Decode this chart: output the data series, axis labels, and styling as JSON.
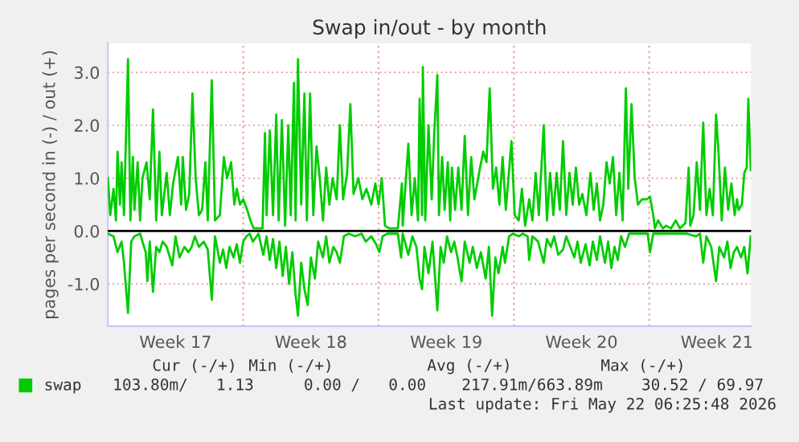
{
  "chart_data": {
    "type": "line",
    "title": "Swap in/out - by month",
    "ylabel": "pages per second in (-) / out (+)",
    "series": [
      {
        "name": "swap",
        "color": "#00cc00",
        "x": [
          "2026-04-19T00:00",
          "2026-04-19T03:00",
          "2026-04-19T07:00",
          "2026-04-19T10:00",
          "2026-04-19T12:00",
          "2026-04-19T15:00",
          "2026-04-19T17:00",
          "2026-04-19T20:00",
          "2026-04-19T22:00",
          "2026-04-20T01:00",
          "2026-04-20T04:00",
          "2026-04-20T07:00",
          "2026-04-20T09:00",
          "2026-04-20T13:00",
          "2026-04-20T16:00",
          "2026-04-20T19:00",
          "2026-04-21T00:00",
          "2026-04-21T04:00",
          "2026-04-21T08:00",
          "2026-04-21T12:00",
          "2026-04-21T16:00",
          "2026-04-21T19:00",
          "2026-04-22T01:00",
          "2026-04-22T05:00",
          "2026-04-22T09:00",
          "2026-04-22T15:00",
          "2026-04-22T19:00",
          "2026-04-22T21:00",
          "2026-04-23T01:00",
          "2026-04-23T05:00",
          "2026-04-23T09:00",
          "2026-04-23T13:00",
          "2026-04-23T17:00",
          "2026-04-23T21:00",
          "2026-04-24T01:00",
          "2026-04-24T04:00",
          "2026-04-24T09:00",
          "2026-04-24T13:00",
          "2026-04-24T19:00",
          "2026-04-25T00:00",
          "2026-04-25T04:00",
          "2026-04-25T09:00",
          "2026-04-25T13:00",
          "2026-04-25T16:00",
          "2026-04-25T20:00",
          "2026-04-26T00:00",
          "2026-04-26T05:00",
          "2026-04-26T09:00",
          "2026-04-26T13:00",
          "2026-04-27T00:00",
          "2026-04-27T03:00",
          "2026-04-27T05:00",
          "2026-04-27T09:00",
          "2026-04-27T13:00",
          "2026-04-27T17:00",
          "2026-04-27T20:00",
          "2026-04-28T00:00",
          "2026-04-28T04:00",
          "2026-04-28T08:00",
          "2026-04-28T11:00",
          "2026-04-28T15:00",
          "2026-04-28T17:00",
          "2026-04-28T20:00",
          "2026-04-29T00:00",
          "2026-04-29T04:00",
          "2026-04-29T07:00",
          "2026-04-29T11:00",
          "2026-04-29T15:00",
          "2026-04-29T19:00",
          "2026-04-29T23:00",
          "2026-04-30T03:00",
          "2026-04-30T07:00",
          "2026-04-30T11:00",
          "2026-04-30T15:00",
          "2026-04-30T20:00",
          "2026-05-01T00:00",
          "2026-05-01T04:00",
          "2026-05-01T09:00",
          "2026-05-01T13:00",
          "2026-05-01T17:00",
          "2026-05-01T23:00",
          "2026-05-02T04:00",
          "2026-05-02T09:00",
          "2026-05-02T15:00",
          "2026-05-02T20:00",
          "2026-05-03T00:00",
          "2026-05-03T04:00",
          "2026-05-03T08:00",
          "2026-05-03T13:00",
          "2026-05-04T00:00",
          "2026-05-04T05:00",
          "2026-05-04T06:00",
          "2026-05-04T13:00",
          "2026-05-04T17:00",
          "2026-05-04T21:00",
          "2026-05-05T01:00",
          "2026-05-05T03:00",
          "2026-05-05T06:00",
          "2026-05-05T07:00",
          "2026-05-05T10:00",
          "2026-05-05T14:00",
          "2026-05-05T18:00",
          "2026-05-05T21:00",
          "2026-05-06T01:00",
          "2026-05-06T03:00",
          "2026-05-06T07:00",
          "2026-05-06T10:00",
          "2026-05-06T14:00",
          "2026-05-06T17:00",
          "2026-05-06T19:00",
          "2026-05-06T23:00",
          "2026-05-07T03:00",
          "2026-05-07T07:00",
          "2026-05-07T11:00",
          "2026-05-07T15:00",
          "2026-05-07T19:00",
          "2026-05-07T23:00",
          "2026-05-08T06:00",
          "2026-05-08T10:00",
          "2026-05-08T14:00",
          "2026-05-08T18:00",
          "2026-05-08T22:00",
          "2026-05-09T02:00",
          "2026-05-09T06:00",
          "2026-05-09T10:00",
          "2026-05-09T14:00",
          "2026-05-09T21:00",
          "2026-05-10T01:00",
          "2026-05-10T06:00",
          "2026-05-10T10:00",
          "2026-05-10T14:00",
          "2026-05-10T19:00",
          "2026-05-10T23:00",
          "2026-05-11T03:00",
          "2026-05-11T07:00",
          "2026-05-11T13:00",
          "2026-05-11T17:00",
          "2026-05-11T21:00",
          "2026-05-12T01:00",
          "2026-05-12T05:00",
          "2026-05-12T09:00",
          "2026-05-12T13:00",
          "2026-05-12T17:00",
          "2026-05-12T21:00",
          "2026-05-13T01:00",
          "2026-05-13T05:00",
          "2026-05-13T09:00",
          "2026-05-13T13:00",
          "2026-05-13T18:00",
          "2026-05-13T23:00",
          "2026-05-14T03:00",
          "2026-05-14T07:00",
          "2026-05-14T11:00",
          "2026-05-14T15:00",
          "2026-05-14T19:00",
          "2026-05-14T23:00",
          "2026-05-15T03:00",
          "2026-05-15T07:00",
          "2026-05-15T11:00",
          "2026-05-15T15:00",
          "2026-05-15T19:00",
          "2026-05-15T22:00",
          "2026-05-16T02:00",
          "2026-05-16T06:00",
          "2026-05-16T10:00",
          "2026-05-16T15:00",
          "2026-05-16T21:00",
          "2026-05-17T01:00",
          "2026-05-17T05:00",
          "2026-05-17T07:00",
          "2026-05-17T11:00",
          "2026-05-17T17:00",
          "2026-05-17T21:00",
          "2026-05-18T03:00",
          "2026-05-18T09:00",
          "2026-05-18T14:00",
          "2026-05-18T21:00",
          "2026-05-19T01:00",
          "2026-05-19T03:00",
          "2026-05-19T07:00",
          "2026-05-19T11:00",
          "2026-05-19T15:00",
          "2026-05-19T19:00",
          "2026-05-19T23:00",
          "2026-05-20T03:00",
          "2026-05-20T07:00",
          "2026-05-20T11:00",
          "2026-05-20T14:00",
          "2026-05-20T18:00",
          "2026-05-20T22:00",
          "2026-05-21T02:00",
          "2026-05-21T06:00",
          "2026-05-21T10:00",
          "2026-05-21T13:00",
          "2026-05-21T15:00",
          "2026-05-21T19:00",
          "2026-05-21T22:00",
          "2026-05-22T01:00",
          "2026-05-22T03:00",
          "2026-05-22T06:00"
        ],
        "values": [
          1.0,
          0.3,
          0.8,
          0.2,
          1.5,
          0.5,
          1.3,
          0.3,
          1.5,
          3.25,
          0.2,
          1.4,
          0.4,
          1.3,
          0.2,
          1.0,
          1.3,
          0.6,
          2.3,
          0.2,
          1.5,
          0.3,
          1.1,
          0.3,
          0.9,
          1.4,
          0.5,
          1.4,
          0.4,
          0.7,
          2.6,
          1.0,
          0.3,
          0.4,
          1.3,
          0.2,
          2.85,
          0.2,
          0.3,
          1.4,
          1.0,
          1.3,
          0.5,
          0.8,
          0.5,
          0.6,
          0.4,
          0.2,
          0.05,
          0.05,
          1.85,
          0.3,
          1.9,
          0.3,
          2.2,
          0.2,
          2.1,
          0.1,
          2.0,
          0.3,
          2.8,
          0.2,
          3.25,
          0.5,
          2.6,
          0.2,
          2.6,
          0.3,
          1.6,
          1.0,
          0.2,
          1.2,
          0.5,
          1.0,
          0.6,
          2.0,
          0.6,
          1.1,
          2.4,
          0.7,
          1.0,
          0.6,
          0.8,
          0.5,
          0.9,
          0.5,
          1.0,
          0.1,
          0.05,
          0.05,
          0.9,
          0.1,
          1.65,
          0.3,
          1.0,
          0.2,
          2.5,
          0.3,
          3.1,
          0.2,
          2.0,
          0.6,
          1.8,
          2.95,
          0.3,
          1.4,
          0.4,
          1.3,
          0.2,
          1.2,
          0.4,
          1.2,
          0.4,
          1.8,
          0.3,
          1.4,
          0.6,
          1.2,
          1.5,
          1.3,
          2.7,
          0.8,
          1.2,
          0.5,
          1.4,
          0.4,
          1.7,
          0.3,
          0.2,
          0.8,
          0.1,
          0.6,
          0.2,
          1.1,
          0.3,
          2.0,
          0.2,
          1.1,
          0.3,
          1.1,
          0.4,
          1.7,
          0.3,
          1.1,
          0.5,
          1.2,
          0.5,
          0.7,
          0.3,
          1.1,
          0.4,
          0.9,
          0.2,
          0.5,
          1.3,
          0.9,
          1.4,
          0.3,
          1.1,
          0.2,
          2.7,
          0.8,
          2.4,
          1.0,
          0.5,
          0.6,
          0.6,
          0.65,
          0.3,
          0.05,
          0.2,
          0.05,
          0.1,
          0.05,
          0.2,
          0.05,
          0.15,
          1.2,
          0.1,
          0.3,
          1.3,
          0.4,
          2.05,
          0.3,
          0.8,
          0.3,
          2.2,
          1.5,
          0.2,
          1.2,
          0.4,
          0.9,
          0.3,
          0.6,
          0.4,
          0.5,
          1.1,
          1.2,
          2.5,
          1.15
        ]
      },
      {
        "color": "#00cc00",
        "x": [
          "2026-04-19T00:00",
          "2026-04-19T07:00",
          "2026-04-19T12:00",
          "2026-04-19T17:00",
          "2026-04-19T20:00",
          "2026-04-20T01:00",
          "2026-04-20T05:00",
          "2026-04-20T09:00",
          "2026-04-20T16:00",
          "2026-04-20T23:00",
          "2026-04-21T01:00",
          "2026-04-21T04:00",
          "2026-04-21T08:00",
          "2026-04-21T12:00",
          "2026-04-21T16:00",
          "2026-04-21T20:00",
          "2026-04-22T01:00",
          "2026-04-22T08:00",
          "2026-04-22T12:00",
          "2026-04-22T17:00",
          "2026-04-22T23:00",
          "2026-04-23T04:00",
          "2026-04-23T08:00",
          "2026-04-23T12:00",
          "2026-04-23T17:00",
          "2026-04-23T23:00",
          "2026-04-24T04:00",
          "2026-04-24T09:00",
          "2026-04-24T13:00",
          "2026-04-24T19:00",
          "2026-04-24T23:00",
          "2026-04-25T03:00",
          "2026-04-25T07:00",
          "2026-04-25T12:00",
          "2026-04-25T16:00",
          "2026-04-25T20:00",
          "2026-04-26T00:00",
          "2026-04-26T04:00",
          "2026-04-26T08:00",
          "2026-04-26T12:00",
          "2026-04-26T19:00",
          "2026-04-27T01:00",
          "2026-04-27T05:00",
          "2026-04-27T09:00",
          "2026-04-27T13:00",
          "2026-04-27T17:00",
          "2026-04-27T21:00",
          "2026-04-28T01:00",
          "2026-04-28T05:00",
          "2026-04-28T09:00",
          "2026-04-28T13:00",
          "2026-04-28T17:00",
          "2026-04-28T20:00",
          "2026-04-29T00:00",
          "2026-04-29T04:00",
          "2026-04-29T08:00",
          "2026-04-29T12:00",
          "2026-04-29T17:00",
          "2026-04-29T21:00",
          "2026-04-30T03:00",
          "2026-04-30T07:00",
          "2026-04-30T11:00",
          "2026-04-30T16:00",
          "2026-04-30T20:00",
          "2026-05-01T00:00",
          "2026-05-01T05:00",
          "2026-05-01T11:00",
          "2026-05-01T19:00",
          "2026-05-02T03:00",
          "2026-05-02T08:00",
          "2026-05-02T15:00",
          "2026-05-02T21:00",
          "2026-05-03T01:00",
          "2026-05-03T05:00",
          "2026-05-03T11:00",
          "2026-05-04T00:00",
          "2026-05-04T04:00",
          "2026-05-04T06:00",
          "2026-05-04T13:00",
          "2026-05-04T18:00",
          "2026-05-04T23:00",
          "2026-05-05T03:00",
          "2026-05-05T06:00",
          "2026-05-05T09:00",
          "2026-05-05T14:00",
          "2026-05-05T19:00",
          "2026-05-06T01:00",
          "2026-05-06T05:00",
          "2026-05-06T09:00",
          "2026-05-06T13:00",
          "2026-05-06T18:00",
          "2026-05-06T22:00",
          "2026-05-07T02:00",
          "2026-05-07T07:00",
          "2026-05-07T11:00",
          "2026-05-07T17:00",
          "2026-05-07T21:00",
          "2026-05-08T02:00",
          "2026-05-08T07:00",
          "2026-05-08T13:00",
          "2026-05-08T17:00",
          "2026-05-08T21:00",
          "2026-05-09T01:00",
          "2026-05-09T05:00",
          "2026-05-09T10:00",
          "2026-05-09T13:00",
          "2026-05-09T18:00",
          "2026-05-09T23:00",
          "2026-05-10T06:00",
          "2026-05-10T11:00",
          "2026-05-10T17:00",
          "2026-05-10T19:00",
          "2026-05-10T23:00",
          "2026-05-11T06:00",
          "2026-05-11T13:00",
          "2026-05-11T17:00",
          "2026-05-11T22:00",
          "2026-05-12T02:00",
          "2026-05-12T07:00",
          "2026-05-12T13:00",
          "2026-05-12T17:00",
          "2026-05-12T22:00",
          "2026-05-13T03:00",
          "2026-05-13T07:00",
          "2026-05-13T11:00",
          "2026-05-13T17:00",
          "2026-05-13T22:00",
          "2026-05-14T02:00",
          "2026-05-14T07:00",
          "2026-05-14T11:00",
          "2026-05-14T17:00",
          "2026-05-14T21:00",
          "2026-05-15T01:00",
          "2026-05-15T05:00",
          "2026-05-15T09:00",
          "2026-05-15T13:00",
          "2026-05-15T18:00",
          "2026-05-15T23:00",
          "2026-05-16T06:00",
          "2026-05-16T13:00",
          "2026-05-16T22:00",
          "2026-05-17T01:00",
          "2026-05-17T05:00",
          "2026-05-17T21:00",
          "2026-05-18T10:00",
          "2026-05-18T23:00",
          "2026-05-19T10:00",
          "2026-05-19T15:00",
          "2026-05-19T19:00",
          "2026-05-19T23:00",
          "2026-05-20T05:00",
          "2026-05-20T11:00",
          "2026-05-20T15:00",
          "2026-05-20T21:00",
          "2026-05-21T01:00",
          "2026-05-21T05:00",
          "2026-05-21T09:00",
          "2026-05-21T13:00",
          "2026-05-21T18:00",
          "2026-05-21T22:00",
          "2026-05-22T02:00",
          "2026-05-22T06:00"
        ],
        "values": [
          -0.05,
          -0.1,
          -0.4,
          -0.2,
          -0.6,
          -1.55,
          -0.2,
          -0.1,
          -0.05,
          -0.4,
          -0.95,
          -0.2,
          -1.15,
          -0.3,
          -0.4,
          -0.2,
          -0.3,
          -0.65,
          -0.1,
          -0.5,
          -0.3,
          -0.4,
          -0.3,
          -0.1,
          -0.3,
          -0.2,
          -0.35,
          -1.3,
          -0.1,
          -0.6,
          -0.35,
          -0.7,
          -0.3,
          -0.5,
          -0.25,
          -0.6,
          -0.2,
          -0.1,
          -0.05,
          -0.2,
          -0.05,
          -0.45,
          -0.1,
          -0.55,
          -0.15,
          -0.7,
          -0.2,
          -0.85,
          -0.3,
          -1.0,
          -0.4,
          -1.2,
          -1.6,
          -0.6,
          -1.1,
          -1.4,
          -0.5,
          -0.9,
          -0.2,
          -0.5,
          -0.1,
          -0.6,
          -0.3,
          -0.4,
          -0.6,
          -0.1,
          -0.05,
          -0.1,
          -0.05,
          -0.2,
          -0.1,
          -0.25,
          -0.4,
          -0.1,
          -0.05,
          -0.05,
          -0.5,
          -0.05,
          -0.45,
          -0.1,
          -0.3,
          -0.9,
          -1.1,
          -0.3,
          -0.8,
          -0.2,
          -1.5,
          -0.3,
          -0.6,
          -0.1,
          -0.4,
          -0.2,
          -0.5,
          -0.95,
          -0.2,
          -0.6,
          -0.3,
          -0.7,
          -0.4,
          -0.9,
          -0.3,
          -1.6,
          -0.5,
          -0.8,
          -0.3,
          -0.6,
          -0.1,
          -0.05,
          -0.1,
          -0.05,
          -0.1,
          -0.55,
          -0.1,
          -0.2,
          -0.6,
          -0.15,
          -0.3,
          -0.1,
          -0.45,
          -0.35,
          -0.1,
          -0.3,
          -0.5,
          -0.2,
          -0.6,
          -0.25,
          -0.65,
          -0.2,
          -0.55,
          -0.1,
          -0.6,
          -0.2,
          -0.7,
          -0.3,
          -0.55,
          -0.1,
          -0.3,
          -0.05,
          -0.05,
          -0.05,
          -0.05,
          -0.4,
          -0.05,
          -0.05,
          -0.05,
          -0.05,
          -0.1,
          -0.05,
          -0.6,
          -0.1,
          -0.3,
          -0.95,
          -0.3,
          -0.5,
          -0.2,
          -0.7,
          -0.4,
          -0.3,
          -0.5,
          -0.3,
          -0.8,
          -0.1
        ]
      }
    ],
    "xlim": [
      "2026-04-19T00:00",
      "2026-05-22T06:25"
    ],
    "xticks": [
      {
        "value": "2026-04-22T12:00",
        "label": "Week 17"
      },
      {
        "value": "2026-04-29T12:00",
        "label": "Week 18"
      },
      {
        "value": "2026-05-06T12:00",
        "label": "Week 19"
      },
      {
        "value": "2026-05-13T12:00",
        "label": "Week 20"
      },
      {
        "value": "2026-05-20T12:00",
        "label": "Week 21"
      }
    ],
    "ylim": [
      -1.8,
      3.55
    ],
    "yticks": [
      {
        "value": -1,
        "label": "-1.0"
      },
      {
        "value": 0,
        "label": "0.0"
      },
      {
        "value": 1,
        "label": "1.0"
      },
      {
        "value": 2,
        "label": "2.0"
      },
      {
        "value": 3,
        "label": "3.0"
      }
    ],
    "ref_lines": [
      {
        "axis": "y",
        "value": 0,
        "color": "#000000"
      },
      {
        "axis": "x",
        "value": "2026-04-26",
        "color": "#e8a0a0",
        "line_style": "dotted"
      },
      {
        "axis": "x",
        "value": "2026-05-03",
        "color": "#e8a0a0",
        "line_style": "dotted"
      },
      {
        "axis": "x",
        "value": "2026-05-10",
        "color": "#e8a0a0",
        "line_style": "dotted"
      },
      {
        "axis": "x",
        "value": "2026-05-17",
        "color": "#e8a0a0",
        "line_style": "dotted"
      }
    ],
    "grid": "y",
    "legend": "bottom",
    "annotations": [
      "Cur (-/+)",
      "Min (-/+)",
      "Avg (-/+)",
      "Max (-/+)",
      "103.80m/   1.13",
      "0.00 /   0.00",
      "217.91m/663.89m",
      "30.52 / 69.97",
      "Last update: Fri May 22 06:25:48 2026"
    ]
  }
}
